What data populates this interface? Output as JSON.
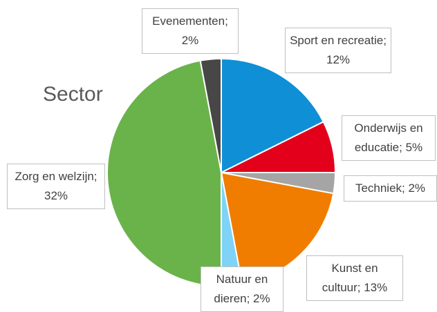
{
  "chart_data": {
    "type": "pie",
    "title": "Sector",
    "values": [
      12,
      5,
      2,
      13,
      2,
      32,
      2
    ],
    "value_labels": [
      "Sport en recreatie; 12%",
      "Onderwijs en educatie; 5%",
      "Techniek; 2%",
      "Kunst en cultuur; 13%",
      "Natuur en dieren; 2%",
      "Zorg en welzijn; 32%",
      "Evenementen; 2%"
    ],
    "colors": [
      "#0f8fd6",
      "#e3001b",
      "#a5a5a5",
      "#f07d00",
      "#7fd3f7",
      "#6ab34a",
      "#474747"
    ]
  }
}
